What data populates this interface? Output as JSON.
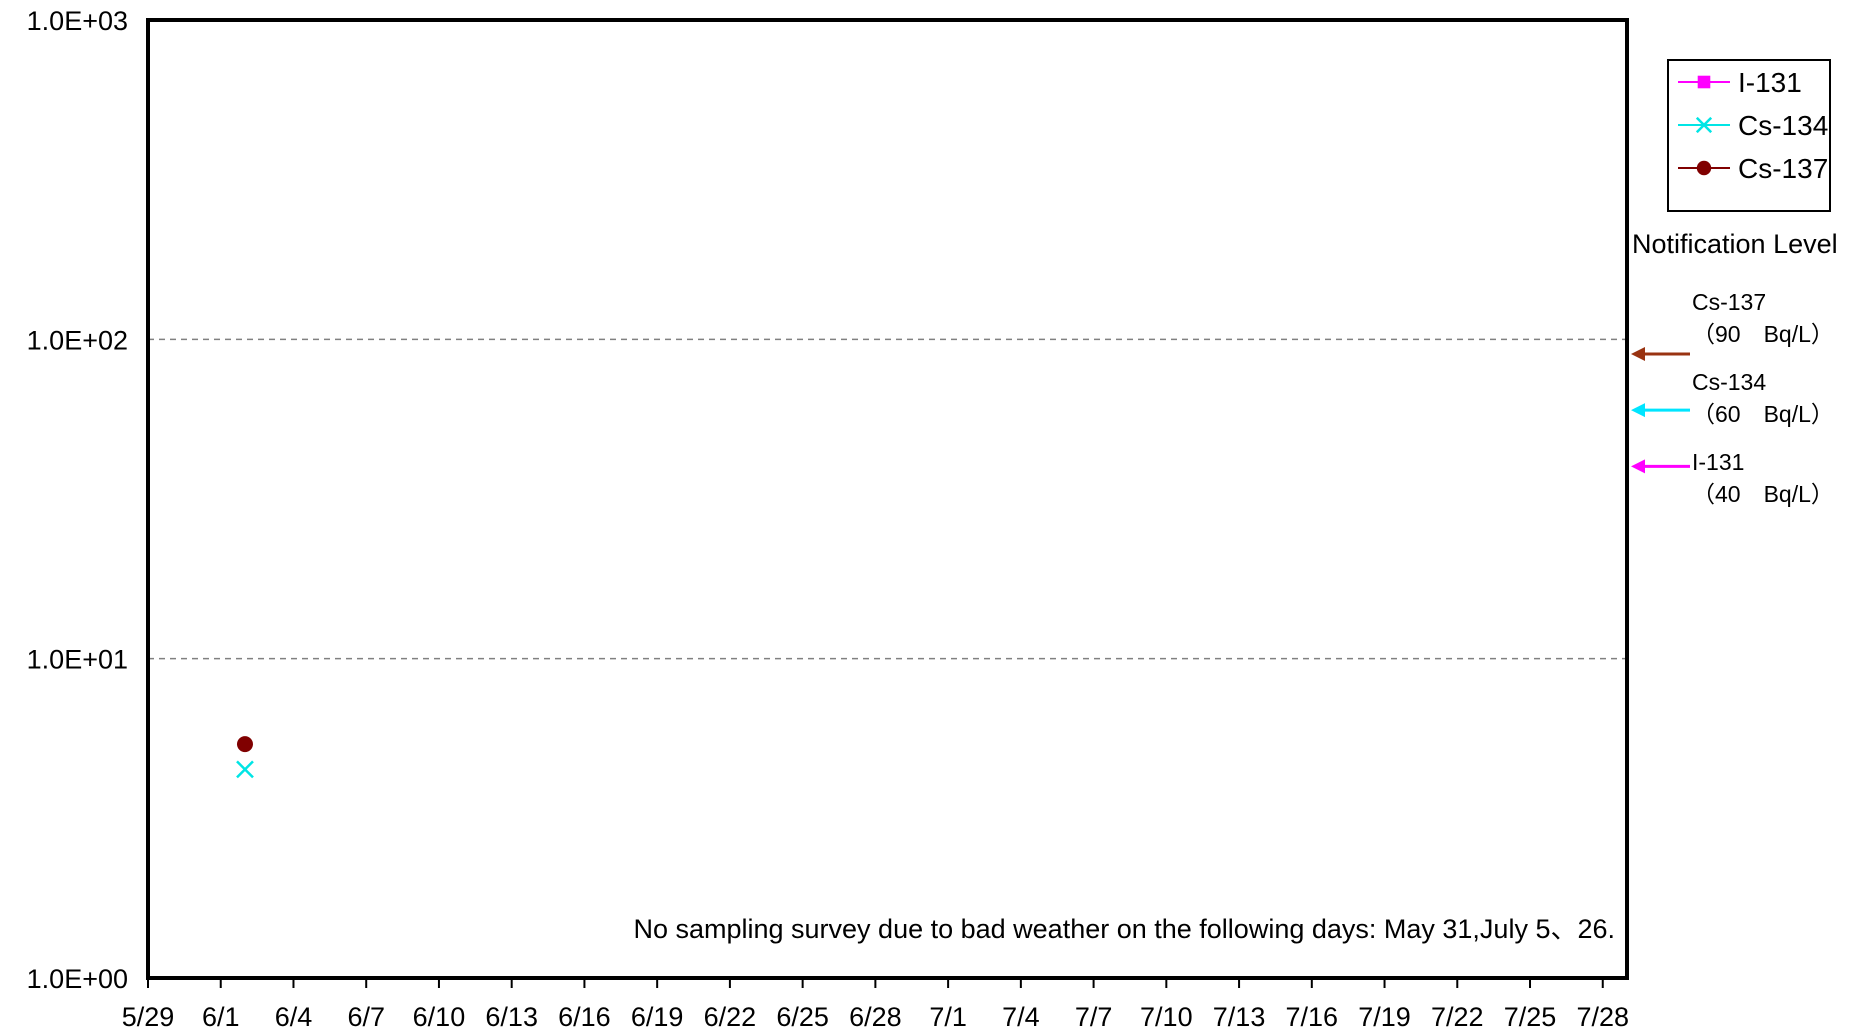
{
  "chart_data": {
    "type": "scatter",
    "title": "",
    "xlabel": "",
    "ylabel": "",
    "y_scale": "log",
    "ylim": [
      1,
      1000
    ],
    "xlim": [
      "5/29",
      "7/29"
    ],
    "grid": "horizontal dashed at 1.0E+01 and 1.0E+02",
    "legend_position": "top-right",
    "y_tick_labels": [
      "1.0E+00",
      "1.0E+01",
      "1.0E+02",
      "1.0E+03"
    ],
    "x_tick_labels": [
      "5/29",
      "6/1",
      "6/4",
      "6/7",
      "6/10",
      "6/13",
      "6/16",
      "6/19",
      "6/22",
      "6/25",
      "6/28",
      "7/1",
      "7/4",
      "7/7",
      "7/10",
      "7/13",
      "7/16",
      "7/19",
      "7/22",
      "7/25",
      "7/28"
    ],
    "series": [
      {
        "name": "I-131",
        "color": "#ff00ff",
        "marker": "square",
        "points": []
      },
      {
        "name": "Cs-134",
        "color": "#00e5e5",
        "marker": "x",
        "points": [
          {
            "x": "6/2",
            "y": 4.5
          }
        ]
      },
      {
        "name": "Cs-137",
        "color": "#800000",
        "marker": "circle",
        "points": [
          {
            "x": "6/2",
            "y": 5.4
          }
        ]
      }
    ],
    "notification": {
      "title": "Notification Level",
      "levels": [
        {
          "name": "Cs-137",
          "value_label": "（90　Bq/L）",
          "value": 90,
          "color": "#993311"
        },
        {
          "name": "Cs-134",
          "value_label": "（60　Bq/L）",
          "value": 60,
          "color": "#00e5ff"
        },
        {
          "name": "I-131",
          "value_label": "（40　Bq/L）",
          "value": 40,
          "color": "#ff00ff"
        }
      ]
    },
    "annotation": "No sampling survey due to bad weather on the following days: May 31,July 5、26."
  }
}
